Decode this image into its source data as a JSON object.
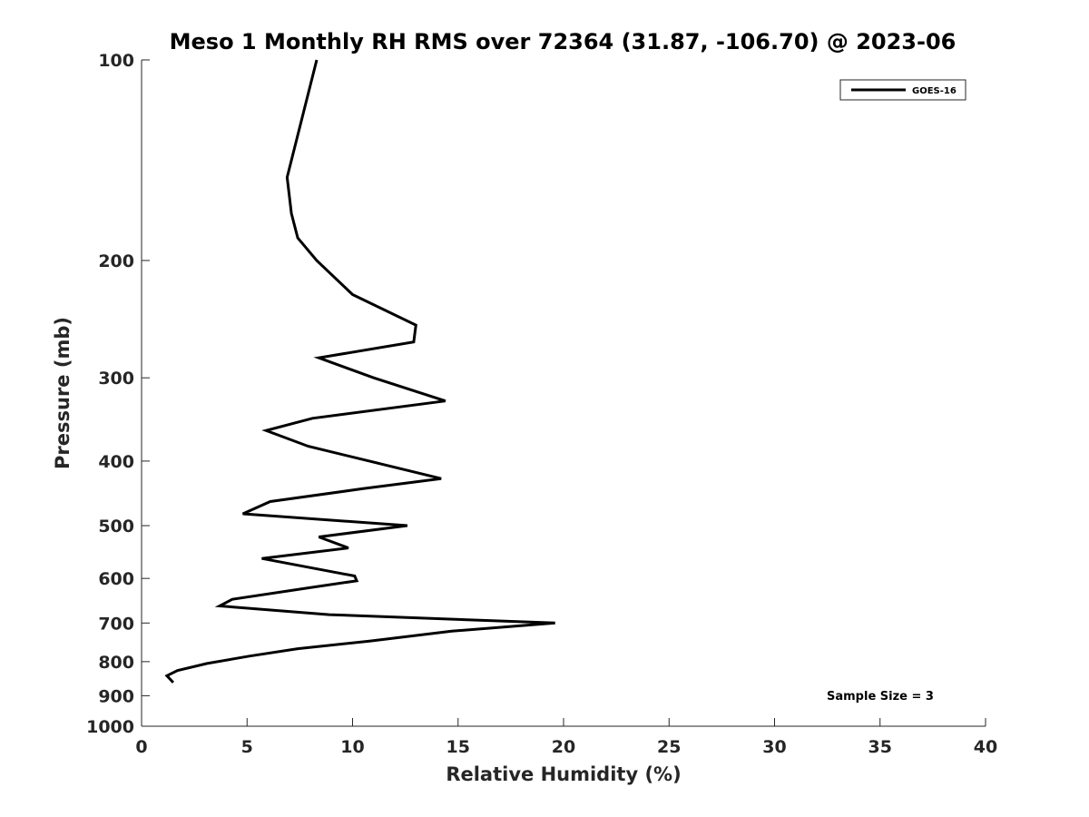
{
  "chart_data": {
    "type": "line",
    "title": "Meso 1 Monthly RH RMS over 72364 (31.87, -106.70) @ 2023-06",
    "xlabel": "Relative Humidity (%)",
    "ylabel": "Pressure (mb)",
    "xlim": [
      0,
      40
    ],
    "ylim": [
      100,
      1000
    ],
    "y_scale": "log",
    "y_inverted": true,
    "x_ticks": [
      0,
      5,
      10,
      15,
      20,
      25,
      30,
      35,
      40
    ],
    "y_ticks": [
      100,
      200,
      300,
      400,
      500,
      600,
      700,
      800,
      900,
      1000
    ],
    "grid": false,
    "legend_position": "top-right",
    "series": [
      {
        "name": "GOES-16",
        "color": "#000000",
        "points": [
          {
            "x": 8.3,
            "p": 100
          },
          {
            "x": 6.9,
            "p": 150
          },
          {
            "x": 7.1,
            "p": 170
          },
          {
            "x": 7.4,
            "p": 185
          },
          {
            "x": 8.3,
            "p": 200
          },
          {
            "x": 10.0,
            "p": 225
          },
          {
            "x": 13.0,
            "p": 250
          },
          {
            "x": 12.9,
            "p": 265
          },
          {
            "x": 8.4,
            "p": 280
          },
          {
            "x": 11.0,
            "p": 300
          },
          {
            "x": 14.4,
            "p": 325
          },
          {
            "x": 8.1,
            "p": 345
          },
          {
            "x": 5.9,
            "p": 360
          },
          {
            "x": 7.9,
            "p": 380
          },
          {
            "x": 11.5,
            "p": 405
          },
          {
            "x": 14.2,
            "p": 425
          },
          {
            "x": 10.5,
            "p": 440
          },
          {
            "x": 6.1,
            "p": 460
          },
          {
            "x": 4.8,
            "p": 480
          },
          {
            "x": 12.6,
            "p": 500
          },
          {
            "x": 8.4,
            "p": 520
          },
          {
            "x": 9.8,
            "p": 540
          },
          {
            "x": 5.7,
            "p": 560
          },
          {
            "x": 10.1,
            "p": 595
          },
          {
            "x": 10.2,
            "p": 605
          },
          {
            "x": 7.9,
            "p": 620
          },
          {
            "x": 4.3,
            "p": 645
          },
          {
            "x": 3.7,
            "p": 660
          },
          {
            "x": 8.9,
            "p": 680
          },
          {
            "x": 19.6,
            "p": 700
          },
          {
            "x": 14.7,
            "p": 720
          },
          {
            "x": 10.8,
            "p": 745
          },
          {
            "x": 7.4,
            "p": 765
          },
          {
            "x": 5.1,
            "p": 785
          },
          {
            "x": 3.1,
            "p": 805
          },
          {
            "x": 1.7,
            "p": 825
          },
          {
            "x": 1.2,
            "p": 840
          },
          {
            "x": 1.5,
            "p": 860
          }
        ]
      }
    ],
    "annotations": [
      {
        "text": "Sample Size = 3",
        "position": "bottom-right"
      }
    ]
  }
}
